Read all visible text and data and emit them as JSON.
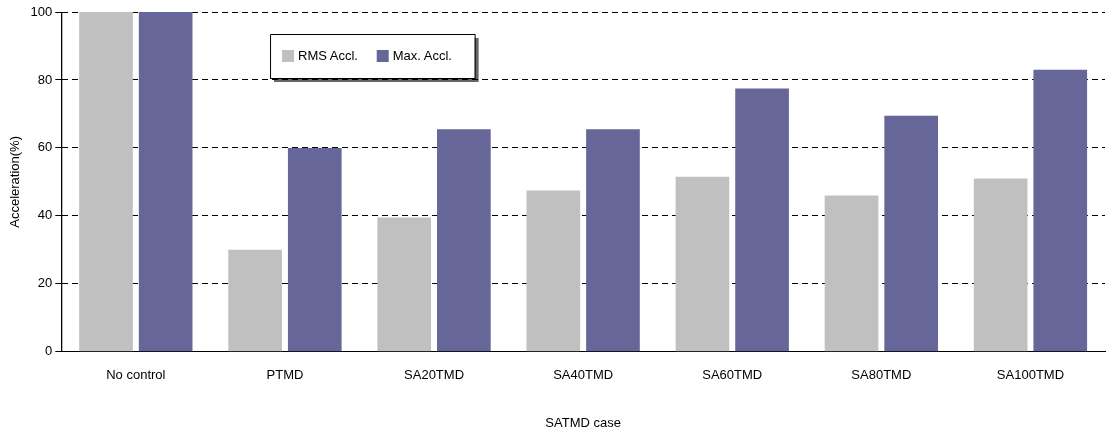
{
  "chart_data": {
    "type": "bar",
    "xlabel": "SATMD case",
    "ylabel": "Acceleration(%)",
    "categories": [
      "No control",
      "PTMD",
      "SA20TMD",
      "SA40TMD",
      "SA60TMD",
      "SA80TMD",
      "SA100TMD"
    ],
    "series": [
      {
        "name": "RMS Accl.",
        "color": "#c0c0c0",
        "values": [
          100,
          30,
          39.5,
          47.5,
          51.5,
          46,
          51
        ]
      },
      {
        "name": "Max. Accl.",
        "color": "#666699",
        "values": [
          100,
          60,
          65.5,
          65.5,
          77.5,
          69.5,
          83
        ]
      }
    ],
    "ylim": [
      0,
      100
    ],
    "yticks": [
      0,
      20,
      40,
      60,
      80,
      100
    ],
    "grid": "y",
    "legend": "top left"
  }
}
